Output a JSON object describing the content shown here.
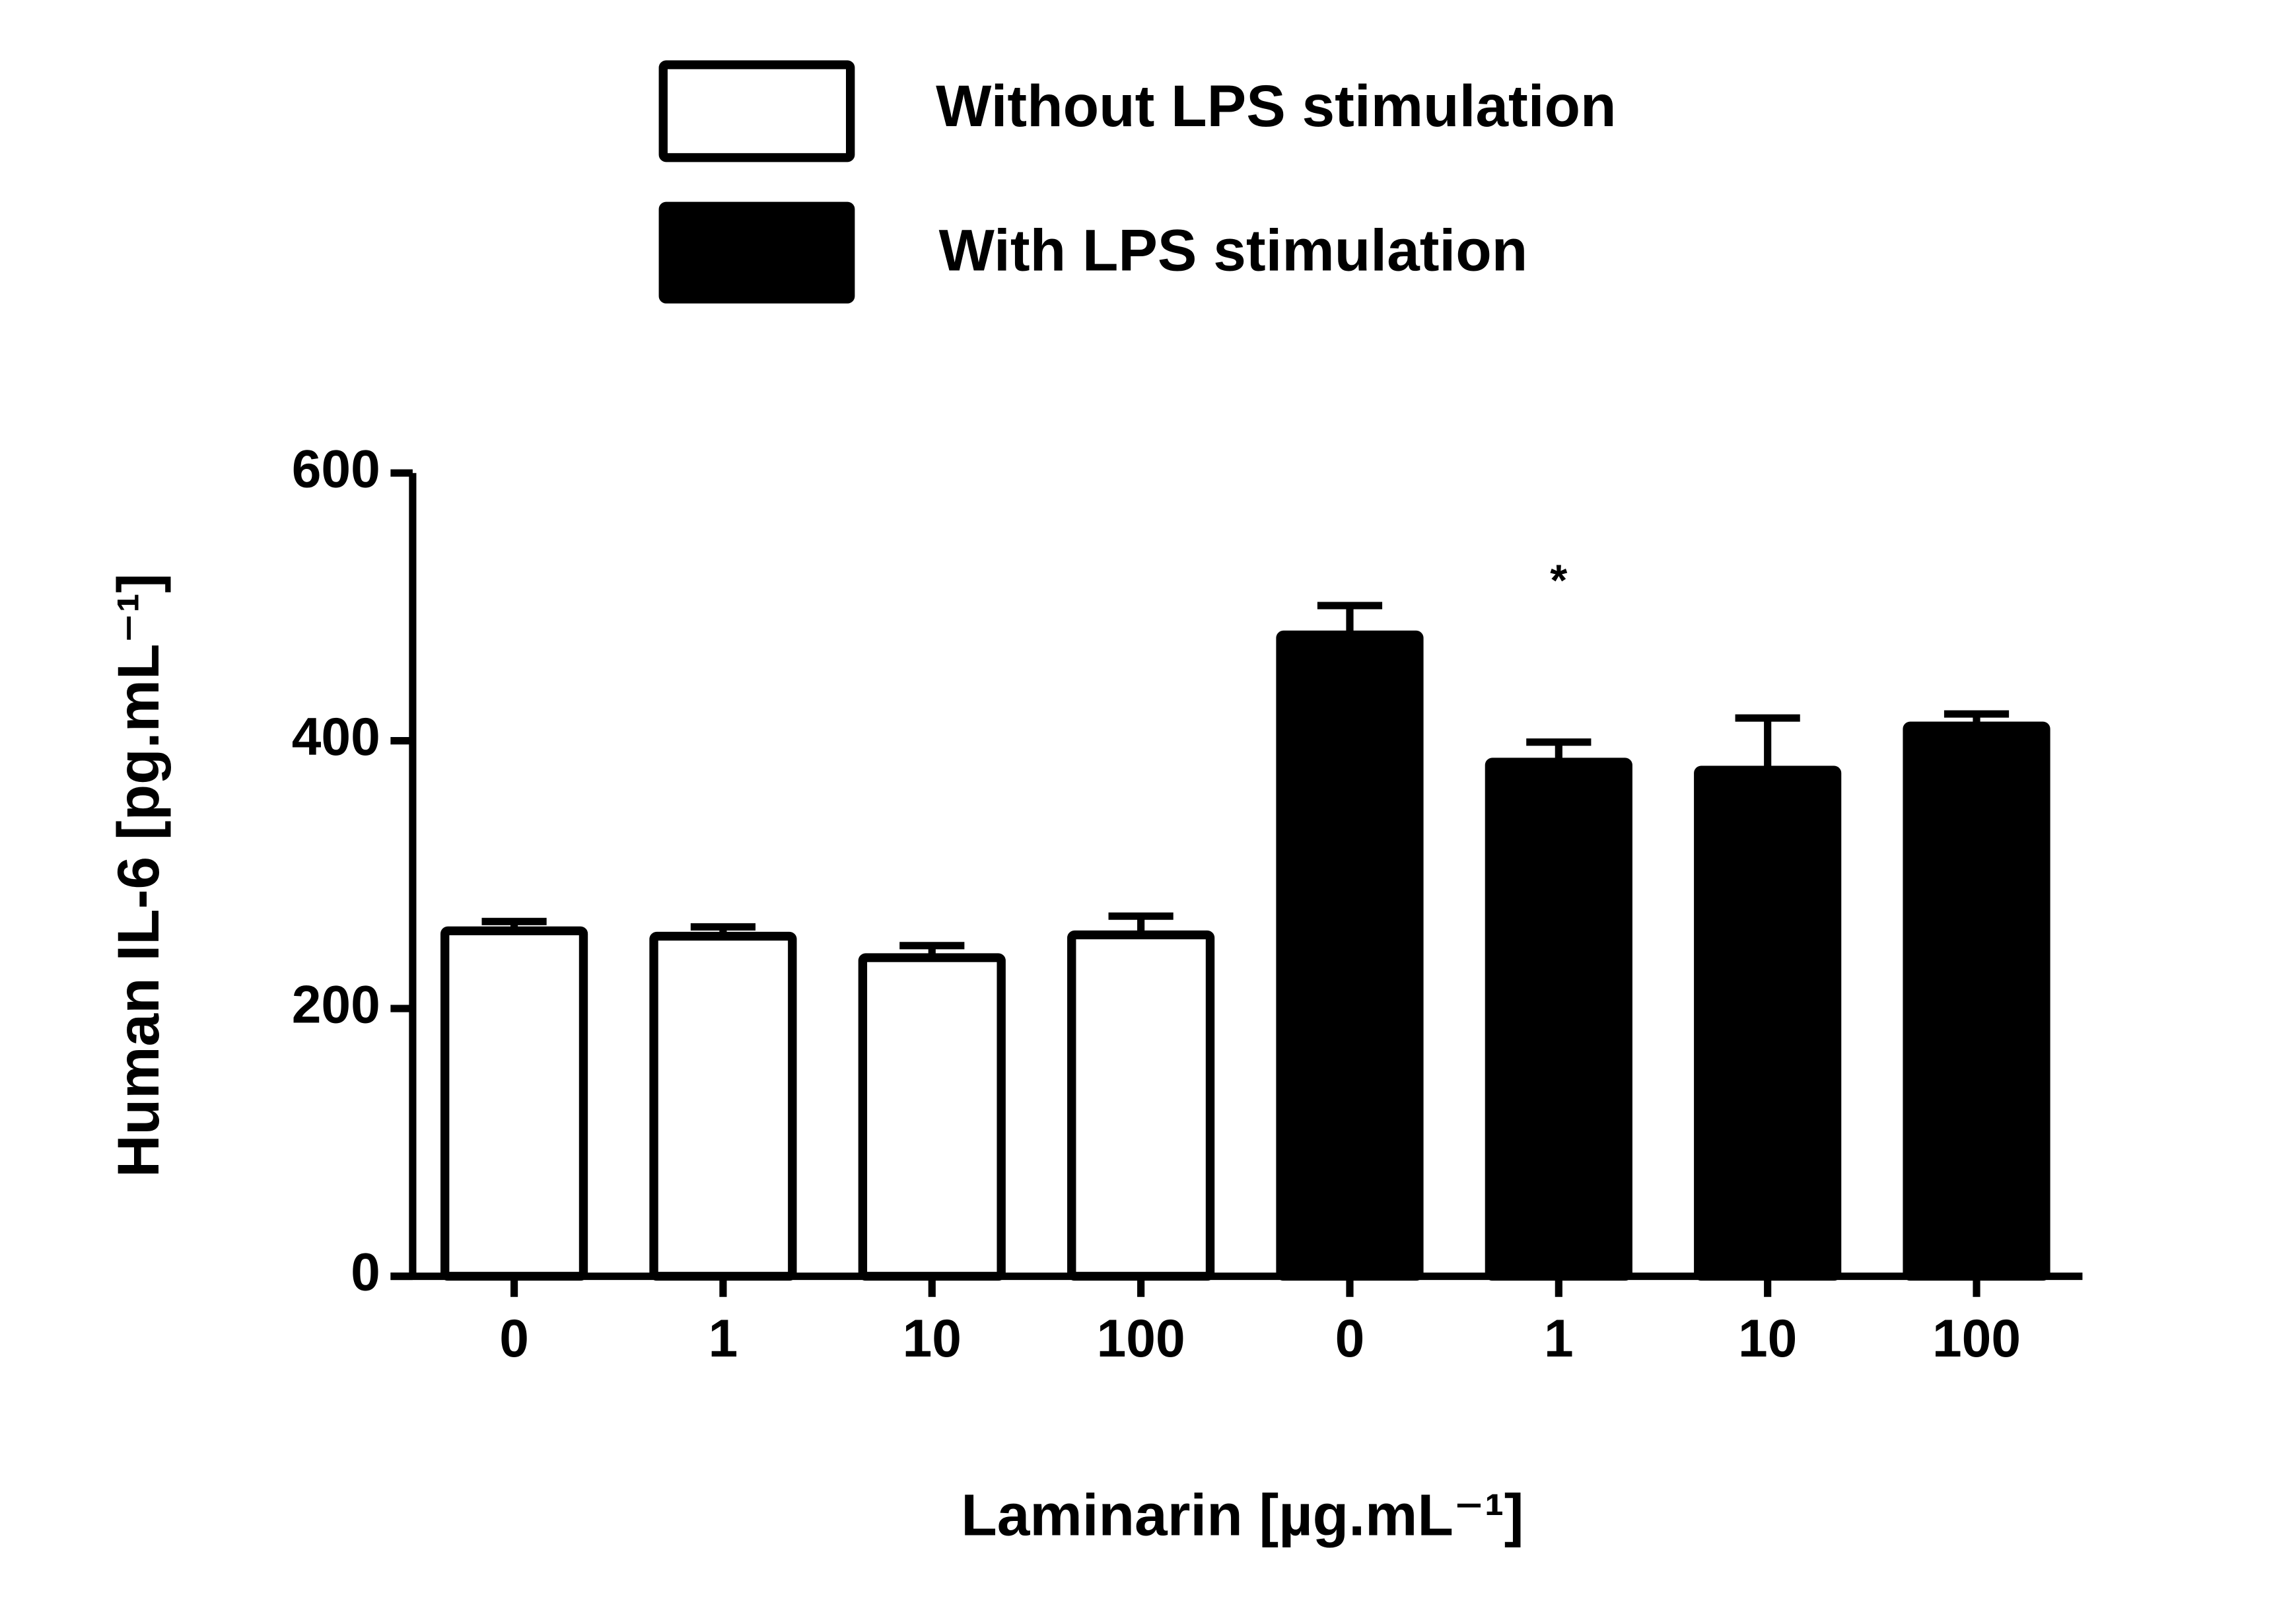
{
  "chart_data": {
    "type": "bar",
    "xlabel": "Laminarin [µg.mL⁻¹]",
    "ylabel": "Human IL-6 [pg.mL⁻¹]",
    "categories": [
      "0",
      "1",
      "10",
      "100",
      "0",
      "1",
      "10",
      "100"
    ],
    "series": [
      {
        "name": "Without LPS stimulation",
        "color": "#ffffff",
        "edgecolor": "#000000",
        "values": [
          258,
          254,
          238,
          255,
          null,
          null,
          null,
          null
        ],
        "errors": [
          7,
          7,
          9,
          14,
          null,
          null,
          null,
          null
        ]
      },
      {
        "name": "With LPS stimulation",
        "color": "#000000",
        "edgecolor": "#000000",
        "values": [
          null,
          null,
          null,
          null,
          479,
          384,
          378,
          411
        ],
        "errors": [
          null,
          null,
          null,
          null,
          22,
          15,
          39,
          9
        ]
      }
    ],
    "annotations": [
      "*"
    ],
    "ylim": [
      0,
      600
    ],
    "yticks": [
      0,
      200,
      400,
      600
    ],
    "grid": false,
    "legend": "top"
  }
}
